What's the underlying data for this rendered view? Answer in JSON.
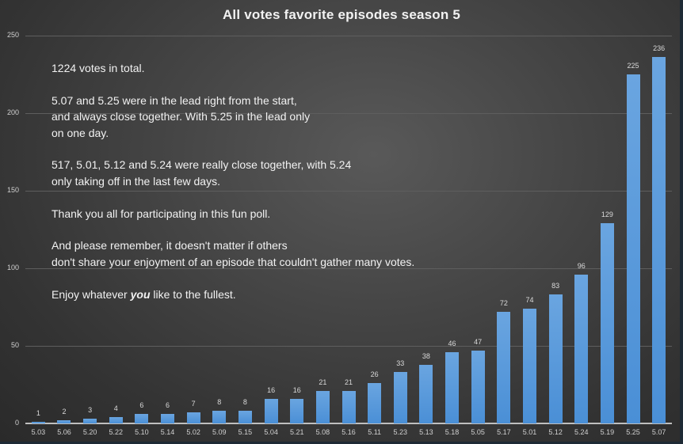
{
  "chart_data": {
    "type": "bar",
    "title": "All votes favorite episodes season 5",
    "xlabel": "",
    "ylabel": "",
    "ylim": [
      0,
      250
    ],
    "yticks": [
      0,
      50,
      100,
      150,
      200,
      250
    ],
    "grid": true,
    "legend": "none",
    "bar_color": "#5b9bd5",
    "categories": [
      "5.03",
      "5.06",
      "5.20",
      "5.22",
      "5.10",
      "5.14",
      "5.02",
      "5.09",
      "5.15",
      "5.04",
      "5.21",
      "5.08",
      "5.16",
      "5.11",
      "5.23",
      "5.13",
      "5.18",
      "5.05",
      "5.17",
      "5.01",
      "5.12",
      "5.24",
      "5.19",
      "5.25",
      "5.07"
    ],
    "values": [
      1,
      2,
      3,
      4,
      6,
      6,
      7,
      8,
      8,
      16,
      16,
      21,
      21,
      26,
      33,
      38,
      46,
      47,
      72,
      74,
      83,
      96,
      129,
      225,
      236
    ],
    "annotations": {
      "line1": "1224 votes in total.",
      "line2": "5.07 and 5.25 were in the lead right from the start,\nand always close together. With 5.25 in the lead only\non one day.",
      "line3": "517, 5.01, 5.12 and 5.24 were really close together, with 5.24\nonly taking off in the last few days.",
      "line4": "Thank you all for participating in this fun poll.",
      "line5": "And please remember, it doesn't matter if others\ndon't share your enjoyment of an episode that couldn't gather many votes.",
      "line6_before": "Enjoy whatever ",
      "line6_emphasis": "you",
      "line6_after": " like to the fullest."
    }
  }
}
